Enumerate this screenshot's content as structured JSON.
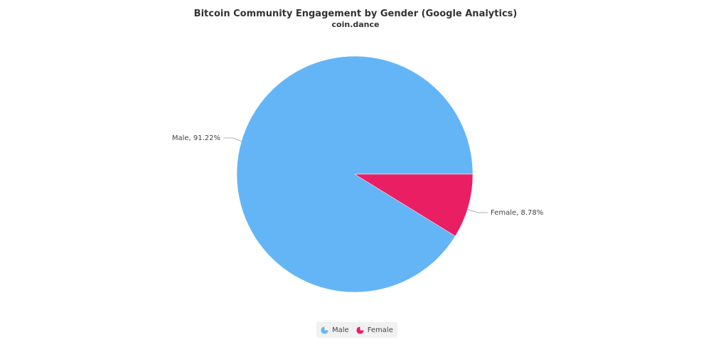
{
  "chart_data": {
    "type": "pie",
    "title": "Bitcoin Community Engagement by Gender (Google Analytics)",
    "subtitle": "coin.dance",
    "slices": [
      {
        "name": "Male",
        "value": 91.22,
        "label": "Male, 91.22%",
        "color": "#64b5f6"
      },
      {
        "name": "Female",
        "value": 8.78,
        "label": "Female, 8.78%",
        "color": "#e91e63"
      }
    ],
    "legend": {
      "placement": "bottom-center",
      "items": [
        "Male",
        "Female"
      ]
    }
  }
}
